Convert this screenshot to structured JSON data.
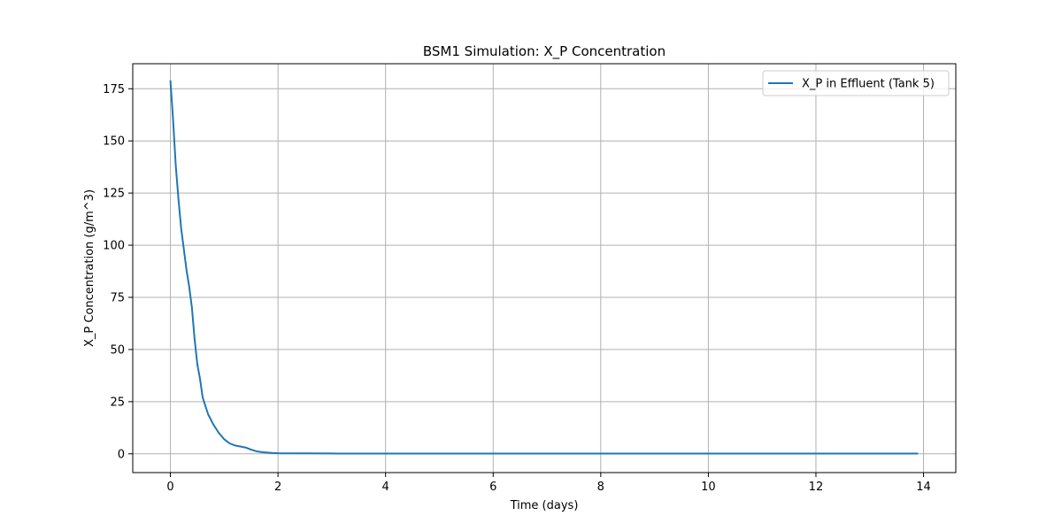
{
  "chart_data": {
    "type": "line",
    "title": "BSM1 Simulation: X_P Concentration",
    "xlabel": "Time (days)",
    "ylabel": "X_P Concentration (g/m^3)",
    "xlim": [
      -0.7,
      14.6
    ],
    "ylim": [
      -9,
      187
    ],
    "xticks": [
      0,
      2,
      4,
      6,
      8,
      10,
      12,
      14
    ],
    "yticks": [
      0,
      25,
      50,
      75,
      100,
      125,
      150,
      175
    ],
    "grid": true,
    "legend_position": "top-right",
    "colors": {
      "series": "#1f77b4",
      "grid": "#b0b0b0",
      "axes": "#000000"
    },
    "series": [
      {
        "name": "X_P in Effluent (Tank 5)",
        "x": [
          0,
          0.05,
          0.1,
          0.15,
          0.2,
          0.25,
          0.3,
          0.35,
          0.4,
          0.45,
          0.5,
          0.55,
          0.6,
          0.65,
          0.7,
          0.75,
          0.8,
          0.85,
          0.9,
          0.95,
          1.0,
          1.1,
          1.2,
          1.3,
          1.4,
          1.5,
          1.6,
          1.7,
          1.8,
          1.9,
          2.0,
          2.2,
          2.5,
          3.0,
          3.5,
          4.0,
          5.0,
          6.0,
          7.0,
          8.0,
          9.0,
          10.0,
          11.0,
          12.0,
          13.0,
          13.9
        ],
        "y": [
          179,
          160,
          138,
          122,
          108,
          98,
          88,
          80,
          70,
          55,
          43,
          36,
          27,
          23,
          19,
          16.5,
          14,
          12,
          10,
          8.5,
          7,
          5,
          4,
          3.5,
          3,
          2,
          1.2,
          0.8,
          0.6,
          0.4,
          0.3,
          0.25,
          0.2,
          0.15,
          0.1,
          0.1,
          0.1,
          0.1,
          0.1,
          0.1,
          0.1,
          0.1,
          0.1,
          0.1,
          0.1,
          0.1
        ]
      }
    ]
  }
}
